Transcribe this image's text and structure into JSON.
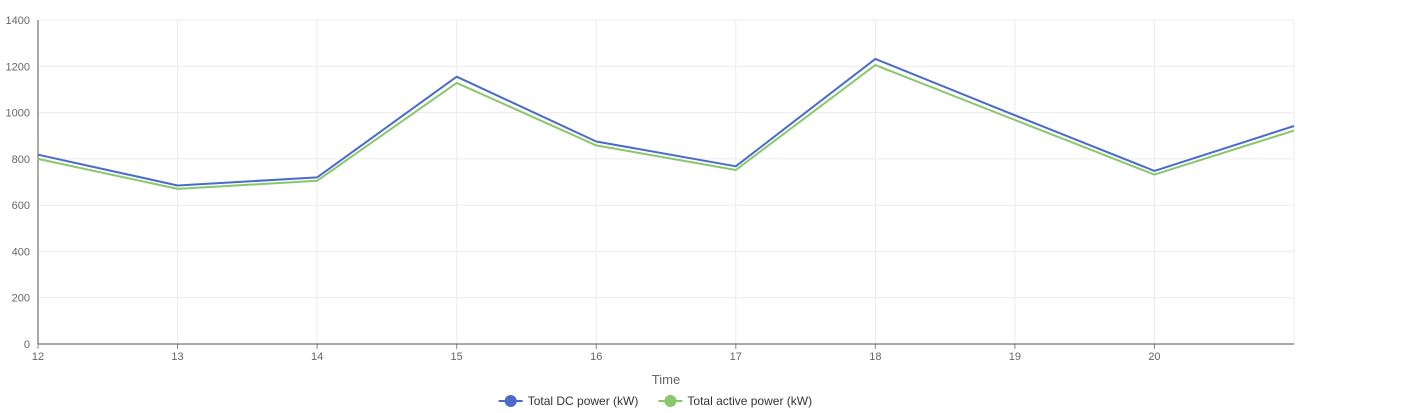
{
  "chart_data": {
    "type": "line",
    "xlabel": "Time",
    "ylabel": "",
    "xlim": [
      12,
      21
    ],
    "ylim": [
      0,
      1400
    ],
    "x_ticks": [
      12,
      13,
      14,
      15,
      16,
      17,
      18,
      19,
      20
    ],
    "y_ticks": [
      0,
      200,
      400,
      600,
      800,
      1000,
      1200,
      1400
    ],
    "grid": true,
    "legend_position": "bottom-center",
    "x": [
      12,
      13,
      14,
      15,
      16,
      17,
      18,
      19,
      20,
      21
    ],
    "series": [
      {
        "name": "Total DC power (kW)",
        "color": "#4a6bc8",
        "values": [
          818,
          685,
          720,
          1155,
          875,
          768,
          1232,
          988,
          748,
          942
        ]
      },
      {
        "name": "Total active power (kW)",
        "color": "#88c76b",
        "values": [
          800,
          670,
          705,
          1128,
          858,
          752,
          1205,
          968,
          732,
          922
        ]
      }
    ]
  }
}
